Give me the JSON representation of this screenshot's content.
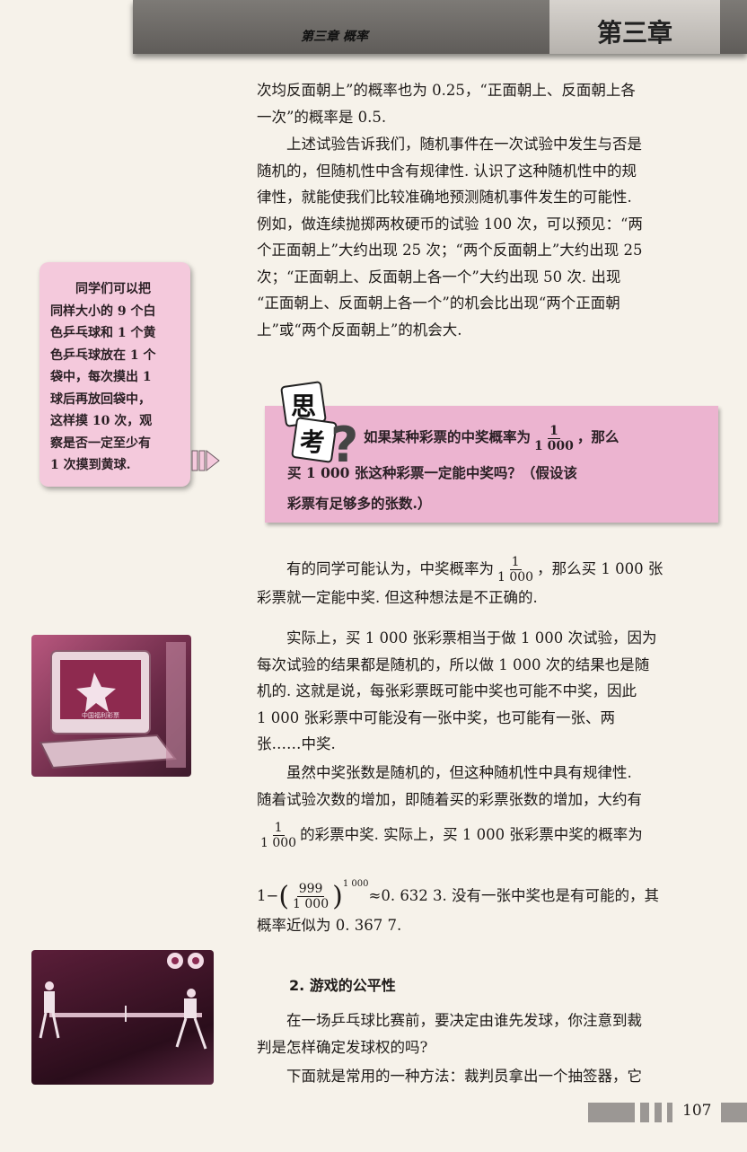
{
  "header": {
    "chapter_title": "第三章  概率",
    "chapter_label": "第三章"
  },
  "paragraphs": {
    "p1": [
      "次均反面朝上”的概率也为 0.25，“正面朝上、反面朝上各",
      "一次”的概率是 0.5."
    ],
    "p2": [
      "上述试验告诉我们，随机事件在一次试验中发生与否是",
      "随机的，但随机性中含有规律性. 认识了这种随机性中的规",
      "律性，就能使我们比较准确地预测随机事件发生的可能性.",
      "例如，做连续抛掷两枚硬币的试验 100 次，可以预见：“两",
      "个正面朝上”大约出现 25 次；“两个反面朝上”大约出现 25",
      "次；“正面朝上、反面朝上各一个”大约出现 50 次. 出现",
      "“正面朝上、反面朝上各一个”的机会比出现“两个正面朝",
      "上”或“两个反面朝上”的机会大."
    ],
    "p3_before_frac": "有的同学可能认为，中奖概率为",
    "p3_after_frac": "，那么买 1 000 张",
    "p3_line2": "彩票就一定能中奖. 但这种想法是不正确的.",
    "p4": [
      "实际上，买 1 000 张彩票相当于做 1 000 次试验，因为",
      "每次试验的结果都是随机的，所以做 1 000 次的结果也是随",
      "机的. 这就是说，每张彩票既可能中奖也可能不中奖，因此",
      "1 000 张彩票中可能没有一张中奖，也可能有一张、两",
      "张……中奖."
    ],
    "p5": [
      "虽然中奖张数是随机的，但这种随机性中具有规律性.",
      "随着试验次数的增加，即随着买的彩票张数的增加，大约有"
    ],
    "p5_after_frac": "的彩票中奖. 实际上，买 1 000 张彩票中奖的概率为",
    "formula_prefix": "1−",
    "formula_exponent": "1 000",
    "formula_suffix": "≈0. 632 3. 没有一张中奖也是有可能的，其",
    "p5_last": "概率近似为 0. 367 7."
  },
  "fractions": {
    "one_thousandth_num": "1",
    "one_thousandth_den": "1 000",
    "ratio_num": "999",
    "ratio_den": "1 000"
  },
  "side_note": [
    "同学们可以把",
    "同样大小的 9 个白",
    "色乒乓球和 1 个黄",
    "色乒乓球放在 1 个",
    "袋中，每次摸出 1",
    "球后再放回袋中，",
    "这样摸 10 次，观",
    "察是否一定至少有",
    "1 次摸到黄球."
  ],
  "think": {
    "icon_top": "思",
    "icon_bottom": "考",
    "line1_before": "如果某种彩票的中奖概率为",
    "line1_after": "，那么",
    "line2": "买 1 000 张这种彩票一定能中奖吗？（假设该",
    "line3": "彩票有足够多的张数.）"
  },
  "section": {
    "title": "2. 游戏的公平性",
    "p1": [
      "在一场乒乓球比赛前，要决定由谁先发球，你注意到裁",
      "判是怎样确定发球权的吗?"
    ],
    "p2": "下面就是常用的一种方法：裁判员拿出一个抽签器，它"
  },
  "photo1_caption": "中国福利彩票",
  "page_number": "107",
  "colors": {
    "note_bg": "#f4c9dc",
    "think_bg": "#ecb4d0",
    "header_bg": "#6e6b68"
  }
}
